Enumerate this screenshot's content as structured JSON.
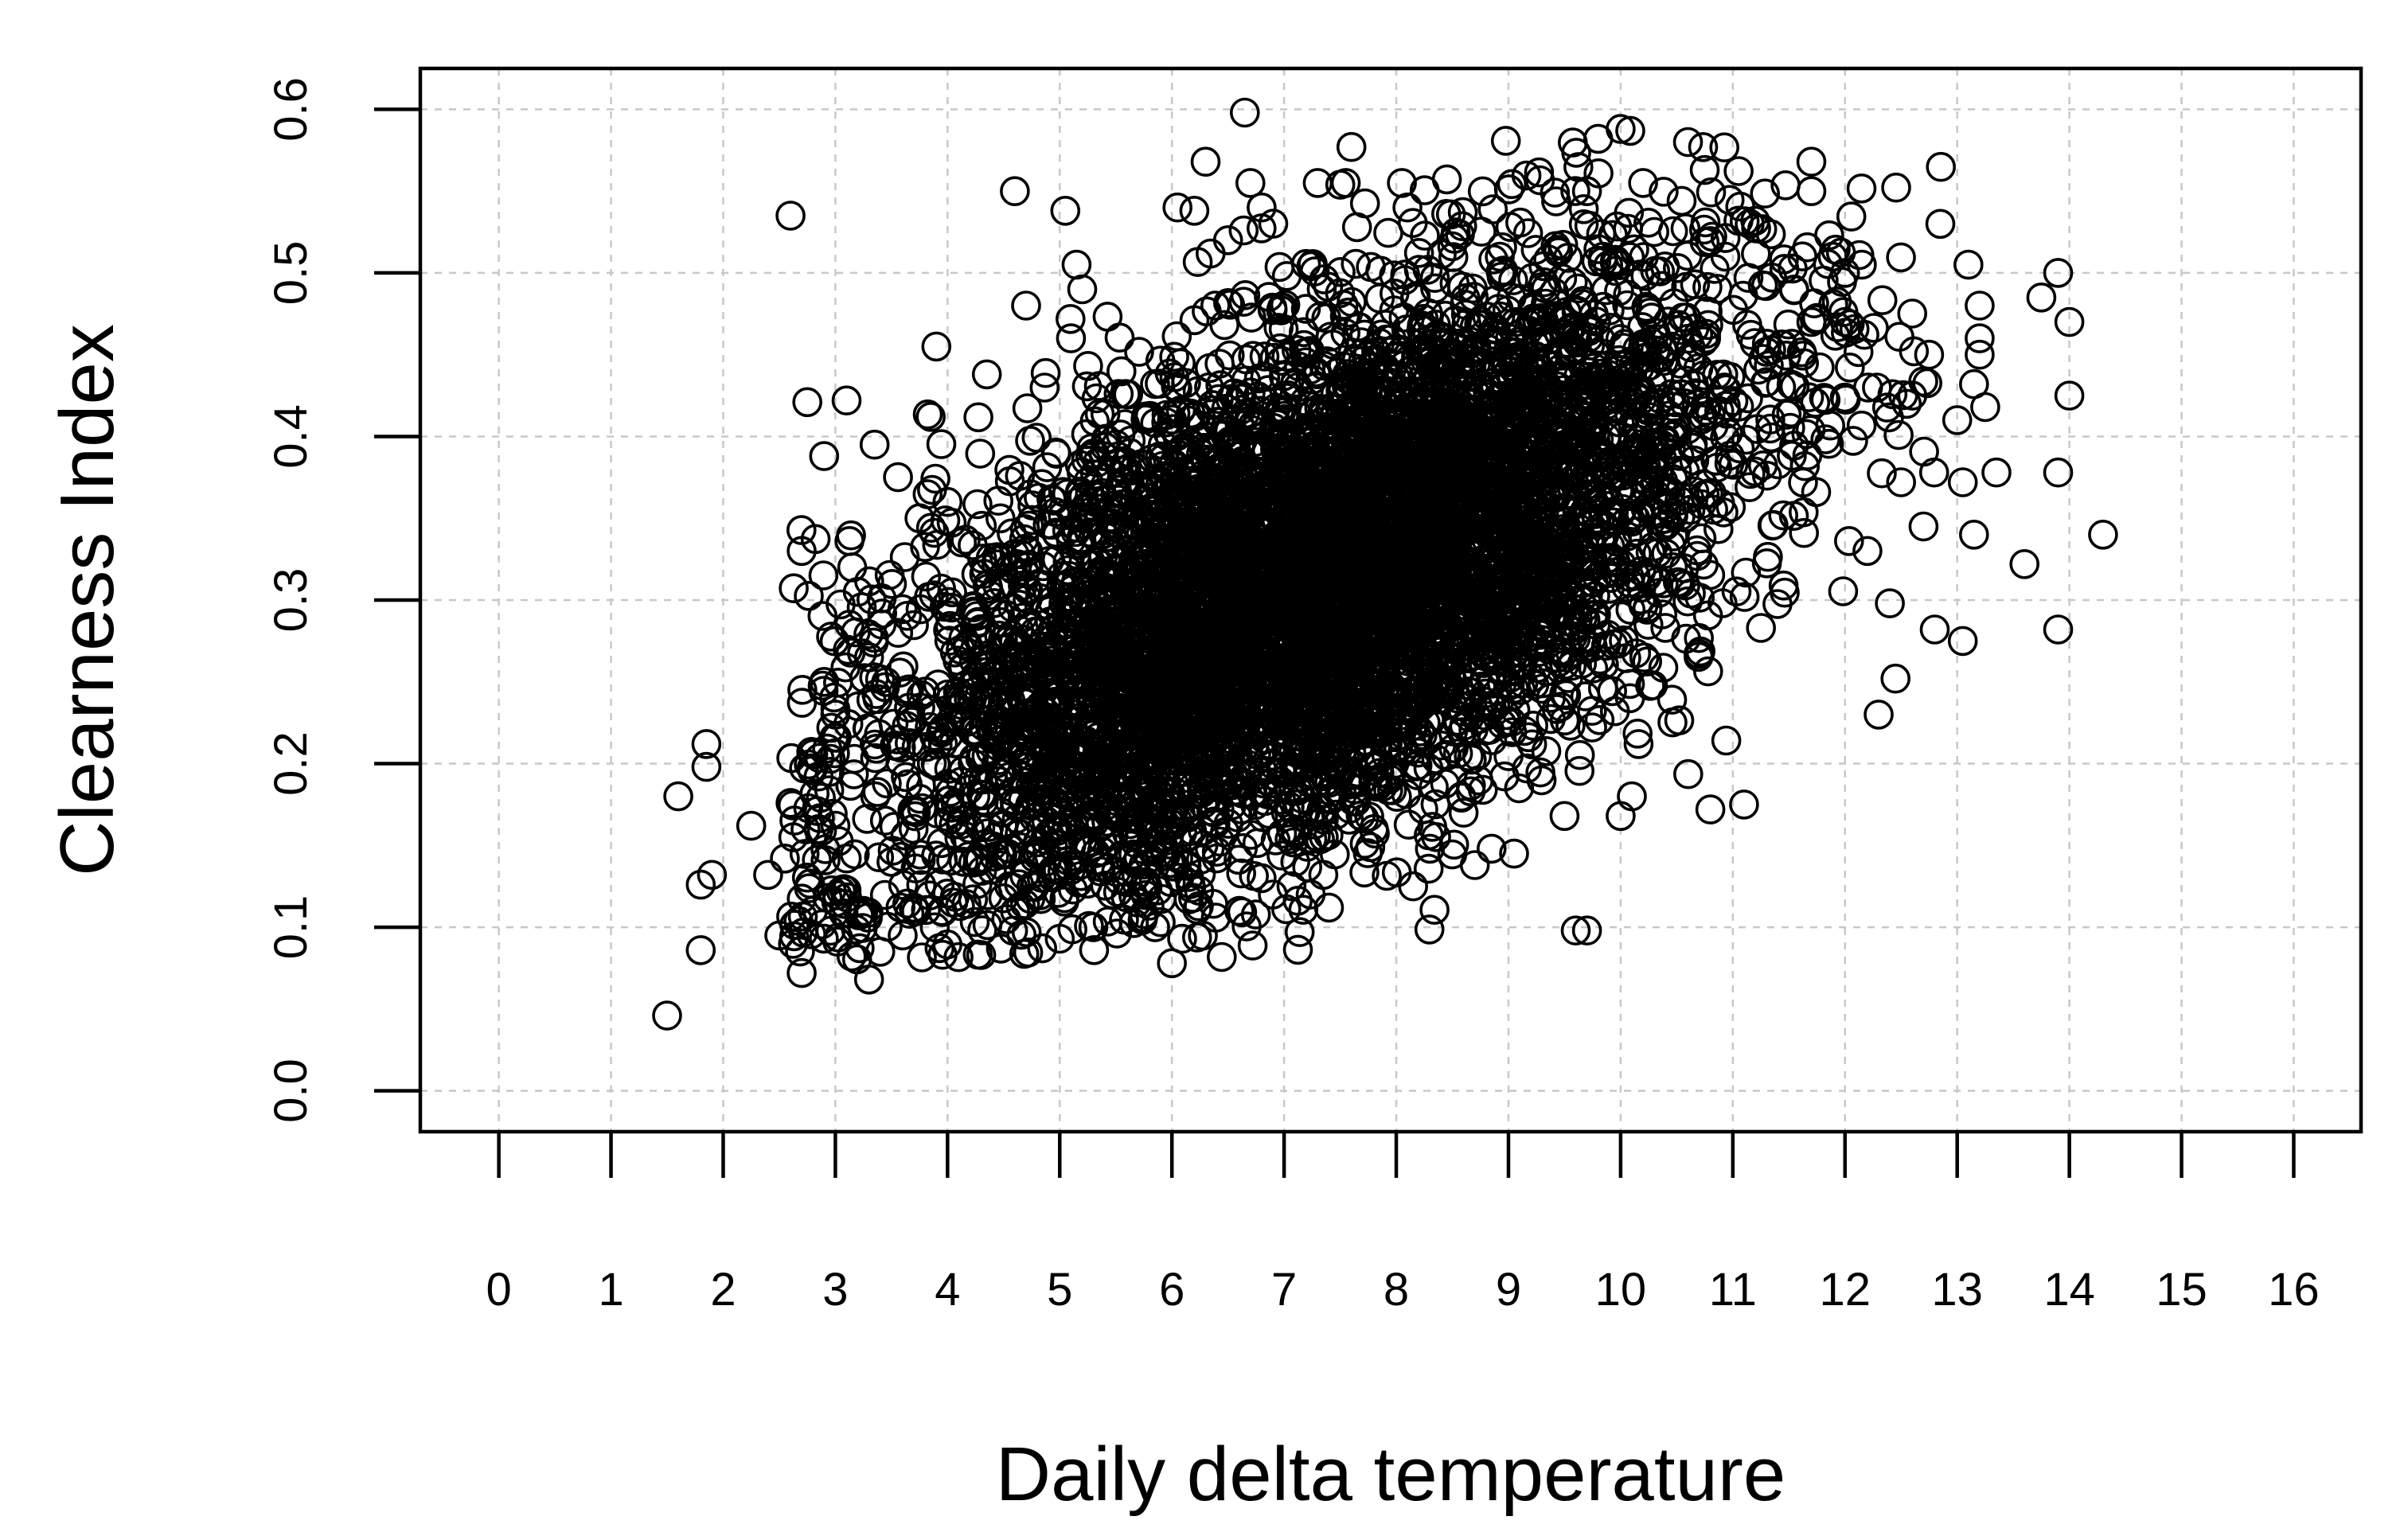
{
  "chart_data": {
    "type": "scatter",
    "title": "",
    "xlabel": "Daily delta temperature",
    "ylabel": "Clearness Index",
    "xlim": [
      -0.7,
      16.6
    ],
    "ylim": [
      -0.025,
      0.625
    ],
    "x_ticks": [
      0,
      1,
      2,
      3,
      4,
      5,
      6,
      7,
      8,
      9,
      10,
      11,
      12,
      13,
      14,
      15,
      16
    ],
    "x_tick_labels": [
      "0",
      "1",
      "2",
      "3",
      "4",
      "5",
      "6",
      "7",
      "8",
      "9",
      "10",
      "11",
      "12",
      "13",
      "14",
      "15",
      "16"
    ],
    "y_ticks": [
      0.0,
      0.1,
      0.2,
      0.3,
      0.4,
      0.5,
      0.6
    ],
    "y_tick_labels": [
      "0.0",
      "0.1",
      "0.2",
      "0.3",
      "0.4",
      "0.5",
      "0.6"
    ],
    "grid": true,
    "marker": "open-circle",
    "series_color": "#000000",
    "points": [
      [
        1.5,
        0.046
      ],
      [
        1.6,
        0.18
      ],
      [
        1.8,
        0.126
      ],
      [
        1.8,
        0.086
      ],
      [
        1.85,
        0.212
      ],
      [
        1.85,
        0.198
      ],
      [
        1.9,
        0.132
      ],
      [
        2.25,
        0.162
      ],
      [
        2.4,
        0.132
      ],
      [
        2.5,
        0.095
      ],
      [
        2.55,
        0.142
      ],
      [
        2.6,
        0.176
      ],
      [
        2.6,
        0.535
      ],
      [
        2.7,
        0.072
      ],
      [
        2.7,
        0.33
      ],
      [
        2.75,
        0.421
      ],
      [
        2.8,
        0.11
      ],
      [
        2.85,
        0.16
      ],
      [
        2.9,
        0.25
      ],
      [
        2.9,
        0.388
      ],
      [
        2.95,
        0.195
      ],
      [
        3.0,
        0.23
      ],
      [
        3.05,
        0.122
      ],
      [
        3.1,
        0.422
      ],
      [
        3.15,
        0.32
      ],
      [
        3.2,
        0.305
      ],
      [
        3.25,
        0.11
      ],
      [
        3.3,
        0.068
      ],
      [
        3.3,
        0.265
      ],
      [
        3.35,
        0.395
      ],
      [
        3.4,
        0.085
      ],
      [
        3.5,
        0.14
      ],
      [
        3.6,
        0.095
      ],
      [
        3.7,
        0.112
      ],
      [
        3.75,
        0.35
      ],
      [
        3.8,
        0.244
      ],
      [
        3.85,
        0.412
      ],
      [
        3.9,
        0.455
      ],
      [
        4.0,
        0.36
      ],
      [
        4.05,
        0.115
      ],
      [
        4.3,
        0.083
      ],
      [
        4.35,
        0.438
      ],
      [
        4.55,
        0.125
      ],
      [
        4.6,
        0.55
      ],
      [
        4.7,
        0.48
      ],
      [
        4.8,
        0.145
      ],
      [
        5.0,
        0.093
      ],
      [
        5.05,
        0.538
      ],
      [
        5.1,
        0.46
      ],
      [
        5.15,
        0.505
      ],
      [
        5.2,
        0.49
      ],
      [
        5.3,
        0.1
      ],
      [
        5.35,
        0.14
      ],
      [
        5.75,
        0.108
      ],
      [
        5.85,
        0.1
      ],
      [
        6.0,
        0.078
      ],
      [
        6.05,
        0.54
      ],
      [
        6.15,
        0.117
      ],
      [
        6.2,
        0.538
      ],
      [
        6.3,
        0.568
      ],
      [
        6.5,
        0.52
      ],
      [
        6.6,
        0.11
      ],
      [
        6.65,
        0.598
      ],
      [
        6.7,
        0.555
      ],
      [
        6.8,
        0.54
      ],
      [
        6.8,
        0.13
      ],
      [
        6.9,
        0.12
      ],
      [
        7.1,
        0.14
      ],
      [
        7.3,
        0.555
      ],
      [
        7.35,
        0.132
      ],
      [
        7.4,
        0.112
      ],
      [
        7.55,
        0.555
      ],
      [
        7.6,
        0.577
      ],
      [
        7.65,
        0.528
      ],
      [
        7.8,
        0.16
      ],
      [
        8.05,
        0.555
      ],
      [
        8.1,
        0.54
      ],
      [
        8.15,
        0.125
      ],
      [
        8.3,
        0.148
      ],
      [
        8.6,
        0.17
      ],
      [
        8.7,
        0.138
      ],
      [
        8.85,
        0.148
      ],
      [
        9.05,
        0.145
      ],
      [
        9.5,
        0.168
      ],
      [
        9.6,
        0.098
      ],
      [
        9.7,
        0.098
      ],
      [
        9.7,
        0.55
      ],
      [
        9.8,
        0.582
      ],
      [
        10.0,
        0.588
      ],
      [
        10.0,
        0.168
      ],
      [
        10.1,
        0.18
      ],
      [
        10.2,
        0.555
      ],
      [
        10.3,
        0.525
      ],
      [
        10.6,
        0.58
      ],
      [
        10.8,
        0.172
      ],
      [
        11.1,
        0.175
      ],
      [
        11.15,
        0.53
      ],
      [
        11.7,
        0.568
      ],
      [
        11.7,
        0.55
      ],
      [
        11.7,
        0.47
      ],
      [
        12.0,
        0.47
      ],
      [
        12.0,
        0.5
      ],
      [
        12.15,
        0.505
      ],
      [
        12.2,
        0.33
      ],
      [
        12.3,
        0.23
      ],
      [
        12.4,
        0.298
      ],
      [
        12.45,
        0.252
      ],
      [
        12.5,
        0.372
      ],
      [
        12.55,
        0.42
      ],
      [
        12.6,
        0.425
      ],
      [
        12.7,
        0.345
      ],
      [
        12.75,
        0.45
      ],
      [
        12.8,
        0.282
      ],
      [
        12.85,
        0.53
      ],
      [
        13.0,
        0.41
      ],
      [
        13.05,
        0.372
      ],
      [
        13.05,
        0.275
      ],
      [
        13.1,
        0.505
      ],
      [
        13.15,
        0.34
      ],
      [
        13.15,
        0.432
      ],
      [
        13.2,
        0.48
      ],
      [
        13.2,
        0.46
      ],
      [
        13.2,
        0.45
      ],
      [
        13.25,
        0.418
      ],
      [
        13.35,
        0.378
      ],
      [
        13.6,
        0.322
      ],
      [
        13.75,
        0.485
      ],
      [
        13.9,
        0.5
      ],
      [
        13.9,
        0.378
      ],
      [
        13.9,
        0.282
      ],
      [
        14.0,
        0.47
      ],
      [
        14.0,
        0.425
      ],
      [
        14.3,
        0.34
      ]
    ],
    "cloud": {
      "n": 6500,
      "x_mean": 7.3,
      "x_sd": 1.85,
      "y_intercept": 0.115,
      "y_slope": 0.027,
      "y_sd": 0.075
    }
  }
}
